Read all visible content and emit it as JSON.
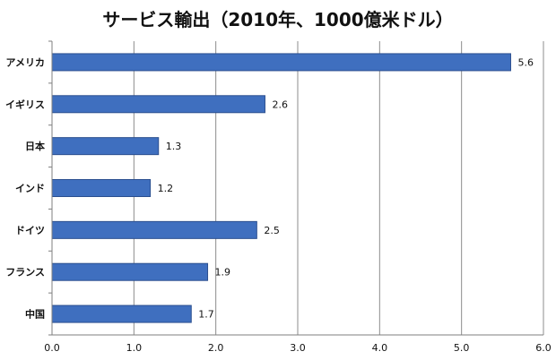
{
  "colors": {
    "bar_fill": "#3f6fbf",
    "bar_stroke": "#2b4f8f",
    "grid": "#8c8c8c",
    "axis": "#7f7f7f",
    "text": "#111111"
  },
  "chart_data": {
    "type": "bar",
    "orientation": "horizontal",
    "title": "サービス輸出（2010年、1000億米ドル）",
    "xlabel": "",
    "ylabel": "",
    "categories": [
      "アメリカ",
      "イギリス",
      "日本",
      "インド",
      "ドイツ",
      "フランス",
      "中国"
    ],
    "values": [
      5.6,
      2.6,
      1.3,
      1.2,
      2.5,
      1.9,
      1.7
    ],
    "value_labels": [
      "5.6",
      "2.6",
      "1.3",
      "1.2",
      "2.5",
      "1.9",
      "1.7"
    ],
    "xlim": [
      0,
      6
    ],
    "xticks": [
      0,
      1,
      2,
      3,
      4,
      5,
      6
    ],
    "xtick_labels": [
      "0.0",
      "1.0",
      "2.0",
      "3.0",
      "4.0",
      "5.0",
      "6.0"
    ],
    "grid": "vertical",
    "legend": "none"
  }
}
